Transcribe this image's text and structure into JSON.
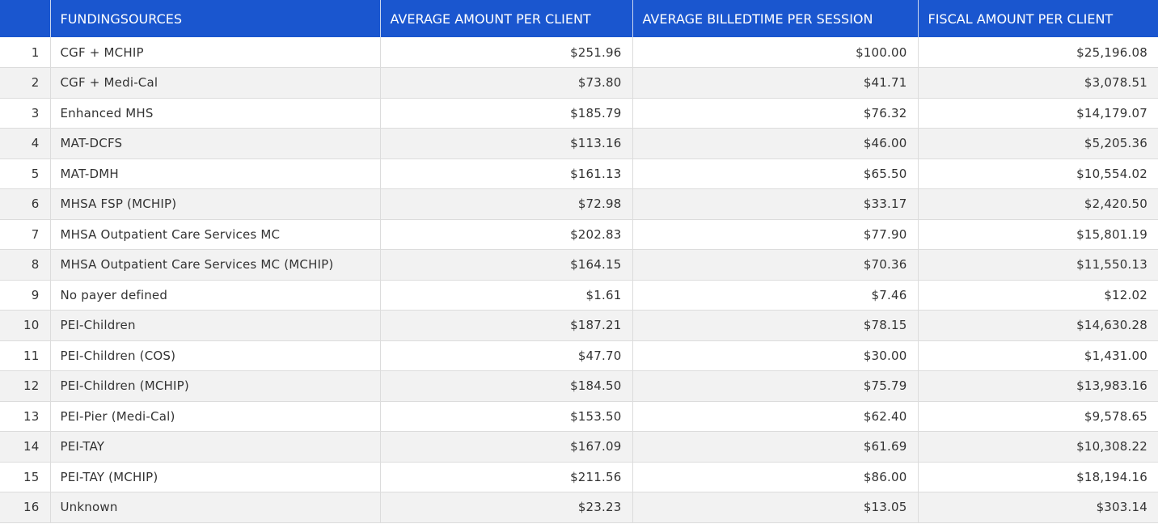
{
  "colors": {
    "header_background": "#1a56cf",
    "header_text": "#ffffff",
    "row_alt_background": "#f2f2f2"
  },
  "table": {
    "headers": {
      "index": "",
      "funding_sources": "FUNDINGSOURCES",
      "avg_amount_per_client": "AVERAGE AMOUNT PER CLIENT",
      "avg_billedtime_per_session": "AVERAGE BILLEDTIME PER SESSION",
      "fiscal_amount_per_client": "FISCAL AMOUNT PER CLIENT"
    },
    "rows": [
      {
        "index": "1",
        "source": "CGF + MCHIP",
        "avg_amount": "$251.96",
        "avg_billed": "$100.00",
        "fiscal_amount": "$25,196.08"
      },
      {
        "index": "2",
        "source": "CGF + Medi-Cal",
        "avg_amount": "$73.80",
        "avg_billed": "$41.71",
        "fiscal_amount": "$3,078.51"
      },
      {
        "index": "3",
        "source": "Enhanced MHS",
        "avg_amount": "$185.79",
        "avg_billed": "$76.32",
        "fiscal_amount": "$14,179.07"
      },
      {
        "index": "4",
        "source": "MAT-DCFS",
        "avg_amount": "$113.16",
        "avg_billed": "$46.00",
        "fiscal_amount": "$5,205.36"
      },
      {
        "index": "5",
        "source": "MAT-DMH",
        "avg_amount": "$161.13",
        "avg_billed": "$65.50",
        "fiscal_amount": "$10,554.02"
      },
      {
        "index": "6",
        "source": "MHSA FSP (MCHIP)",
        "avg_amount": "$72.98",
        "avg_billed": "$33.17",
        "fiscal_amount": "$2,420.50"
      },
      {
        "index": "7",
        "source": "MHSA Outpatient Care Services MC",
        "avg_amount": "$202.83",
        "avg_billed": "$77.90",
        "fiscal_amount": "$15,801.19"
      },
      {
        "index": "8",
        "source": "MHSA Outpatient Care Services MC (MCHIP)",
        "avg_amount": "$164.15",
        "avg_billed": "$70.36",
        "fiscal_amount": "$11,550.13"
      },
      {
        "index": "9",
        "source": "No payer defined",
        "avg_amount": "$1.61",
        "avg_billed": "$7.46",
        "fiscal_amount": "$12.02"
      },
      {
        "index": "10",
        "source": "PEI-Children",
        "avg_amount": "$187.21",
        "avg_billed": "$78.15",
        "fiscal_amount": "$14,630.28"
      },
      {
        "index": "11",
        "source": "PEI-Children (COS)",
        "avg_amount": "$47.70",
        "avg_billed": "$30.00",
        "fiscal_amount": "$1,431.00"
      },
      {
        "index": "12",
        "source": "PEI-Children (MCHIP)",
        "avg_amount": "$184.50",
        "avg_billed": "$75.79",
        "fiscal_amount": "$13,983.16"
      },
      {
        "index": "13",
        "source": "PEI-Pier (Medi-Cal)",
        "avg_amount": "$153.50",
        "avg_billed": "$62.40",
        "fiscal_amount": "$9,578.65"
      },
      {
        "index": "14",
        "source": "PEI-TAY",
        "avg_amount": "$167.09",
        "avg_billed": "$61.69",
        "fiscal_amount": "$10,308.22"
      },
      {
        "index": "15",
        "source": "PEI-TAY (MCHIP)",
        "avg_amount": "$211.56",
        "avg_billed": "$86.00",
        "fiscal_amount": "$18,194.16"
      },
      {
        "index": "16",
        "source": "Unknown",
        "avg_amount": "$23.23",
        "avg_billed": "$13.05",
        "fiscal_amount": "$303.14"
      }
    ]
  }
}
